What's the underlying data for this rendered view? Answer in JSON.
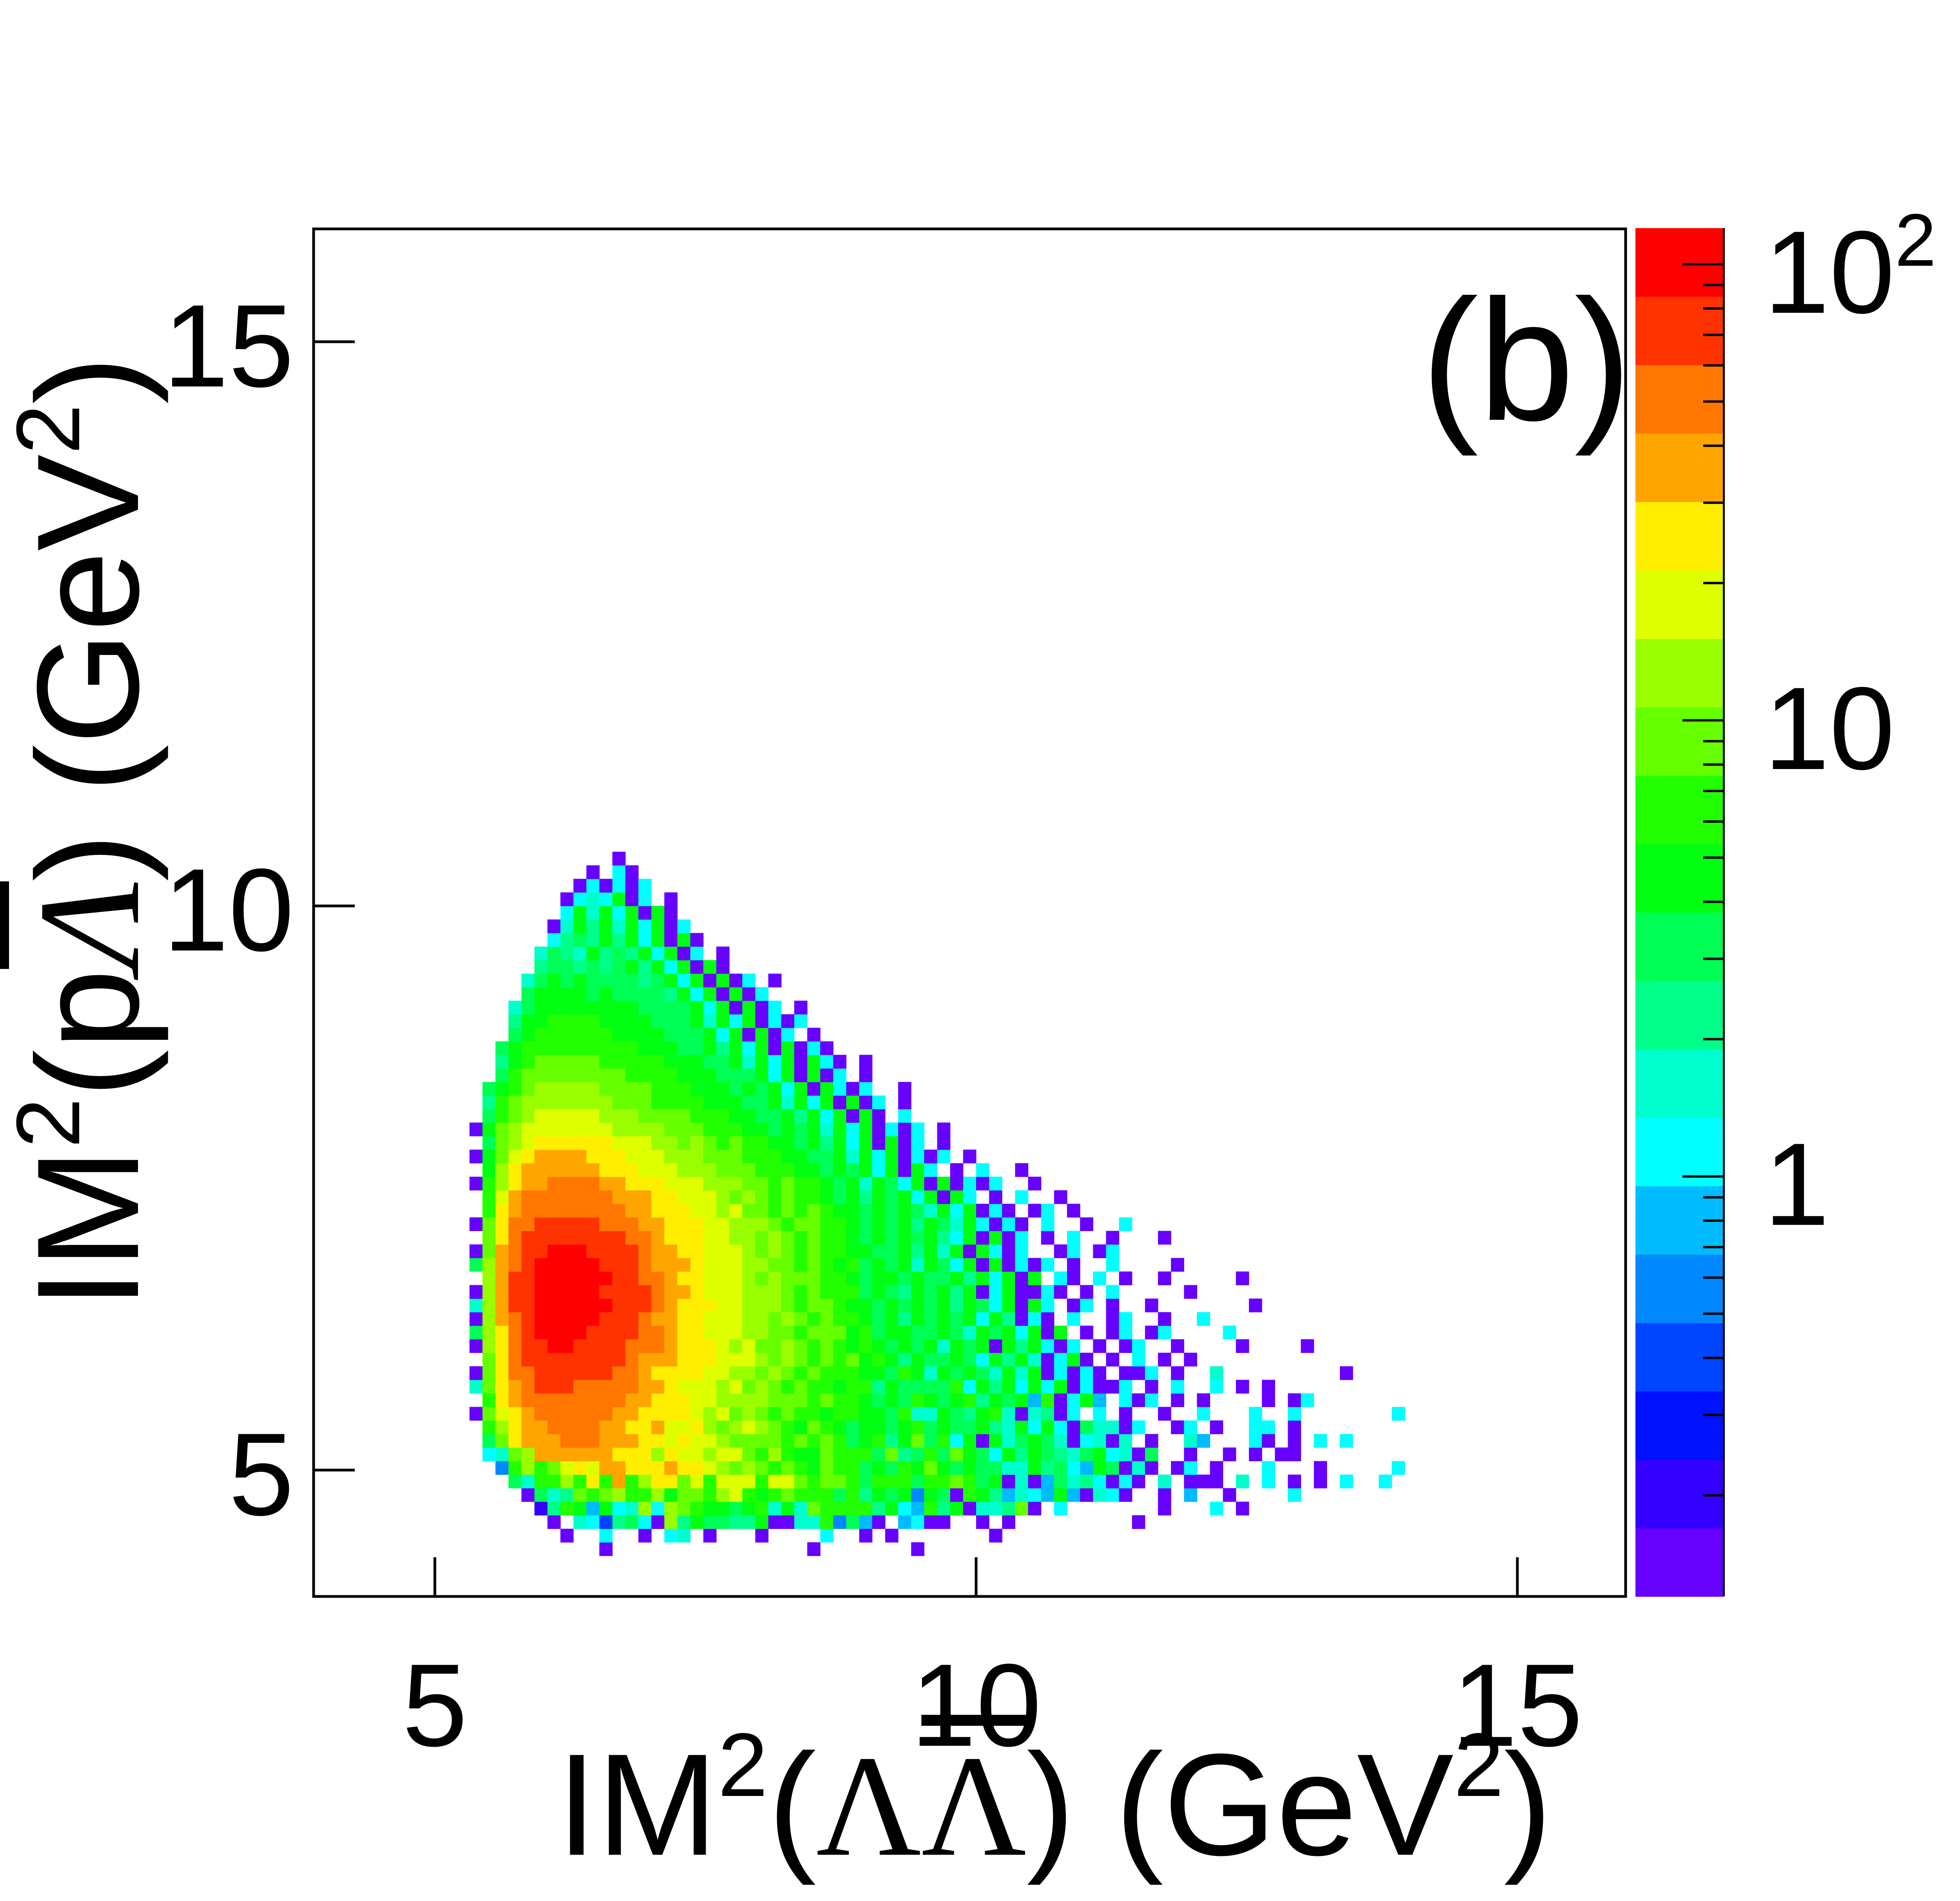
{
  "chart_data": {
    "type": "heatmap",
    "panel_label": "(b)",
    "title": "",
    "xlabel": {
      "prefix": "IM",
      "sup": "2",
      "open": "(",
      "particle1": "Λ",
      "particle2": "Λ",
      "particle2_bar": true,
      "close": ")",
      "unit_open": " (GeV",
      "unit_sup": "2",
      "unit_close": ")"
    },
    "ylabel": {
      "prefix": "IM",
      "sup": "2",
      "open": "(",
      "particle1": "p",
      "particle2": "Λ",
      "particle2_bar": true,
      "close": ")",
      "unit_open": " (GeV",
      "unit_sup": "2",
      "unit_close": ")"
    },
    "xlim": [
      3.88,
      16.0
    ],
    "ylim": [
      3.88,
      16.0
    ],
    "x_ticks": [
      5,
      10,
      15
    ],
    "y_ticks": [
      5,
      10,
      15
    ],
    "x_tick_labels": [
      "5",
      "10",
      "15"
    ],
    "y_tick_labels": [
      "5",
      "10",
      "15"
    ],
    "z_scale": "log",
    "zlim": [
      0.12,
      120
    ],
    "z_ticks": [
      1,
      10,
      100
    ],
    "z_tick_labels": [
      {
        "base": "1",
        "exp": ""
      },
      {
        "base": "10",
        "exp": ""
      },
      {
        "base": "10",
        "exp": "2"
      }
    ],
    "palette": [
      "#6600ff",
      "#3300ff",
      "#0011ff",
      "#0044ff",
      "#0088ff",
      "#00bbff",
      "#00ffff",
      "#00ffcc",
      "#00ff88",
      "#00ff55",
      "#00ff11",
      "#22ff00",
      "#66ff00",
      "#99ff00",
      "#ddff00",
      "#ffee00",
      "#ffa500",
      "#ff7700",
      "#ff3300",
      "#ff0000"
    ],
    "bin_width": 0.12,
    "bin_encoding": "each character is a palette band index (0-9 then a-j = 10-19) for one bin; '.' means empty; row i covers y from y0+i*bin_width, column j covers x from x0+(col_offset+j)*bin_width",
    "x0": 3.88,
    "y0": 3.88,
    "col_offset": 7,
    "row_offset": 3,
    "rows": [
      "...............0...............0.......0....................................",
      "............0..6..0.67.0...0....6..0.0.......0..............................",
      "...........0.7638960d8a9988a0077b4950.5600..0.0.........0....................",
      "..........18ba5a67d6dcbaa9ab7a7cbbbb8a65b8a0778c0.6.......0...6.0............",
      ".........0978cbcdbbdaccbdebabcbbb9b8a9a4a90ba85765a50760..0.5..0....6........",
      "........97bbdbfbgbdffcebeeebeecbccb9bbb9bbcb9a07059786060.7.000.7.6.0.0.6..6.",
      ".......4bdbcefeggfffgffedcdcbcbacbb9a9baca9a9977a8965a9070.06.0...6...0.....6",
      "......67cdggggggfffdfeedeecbdbaacbbb9c89b9ca96a8a9879a6709..0..0.0.00.......",
      "......9cfggghhhgggffefeedccccbcbcb9ab8ac9b6a0a79a9706707.0..75...60.0.6.6....",
      "......bdfgghhhhggffgeefdcdedcbacba9aa9ab9a99a87a6a6097706..06.0..66.0.......",
      ".....0cefghhhhhhggffffedecdcbcbbabbaa9b77a98ab707806.6.0..0..6...6..6.......6",
      "......bfghhhhhhhhggfffeeddddcccbcbba9a9ba9ab8a9a5b06a5.606.0.0....0.06.......",
      ".....7cfghiiihhhhhggfeeedecdcbcbbabb8a9999b6a8a6a6a06006.0.6..6.0.0..........",
      ".....0cfhhiiiiiihhgffffeeddcdcbcbbbaa9ba7a9a97a7a06060.006.0..7.........0....",
      "......cfhiiiiiiiihgggfffeeedcdcbcbcaba8a99a96a8a706a0.0.6.0.0................",
      ".....0dfhiijjiiiihhhgfffedeccdcbcbaba9a9a7a9a0a8a606.0.06..0....0....0.......",
      ".....9dfhijjjjiiiihhgffeeeddccbcccab9aa99a97a9a6a0a.0.06.06....6.............",
      ".....0dghijjjjjiiihggffeeeddcdcbcbba9a8a9a9a6a8060.6..06..0..6...............",
      ".....7dgiijjjjjjiiihgfffeedddcbccbaa9a9a9a8a96a0a6.06.0..0.......0...........",
      ".....0dgiijjjjjiiiihggfeeedddcbcbbb9a98a9a8a06a0060.0.6.....0................",
      "......dgiijjjjjjiihhgffeeedcdcccbba9aa9a99a8a6a0a.60.6.0..0.....0............",
      ".....9dghijjjjjiiihgggfeeeddccbcbab9a9a7a96a0a0606.0..6....0.................",
      ".....0cghiijjjiiiihggffeeedcdcbcbbaa99a8a7a0a606..06.06......................",
      "......cfhiiiiiiiihhgfffeeddcdcbcbba9a9a9a86a0a06.0.6..0...0..................",
      ".....0cfhhiiiiihhhggfffeedddcbccbba9a9a8a97a6060.6..0..6.....................",
      "......bfghhhhhhhhggfffeedeccbcbcbaa9a9a97a6a060.06.0.........................",
      "......beghhhhhhhgggffeeedcdcbcbba9a8a9a6a0a6.0.6..0..........................",
      ".....0bdfgghhhhggfffeeedddccbcbba9a7a96a0a0606..0.............................",
      "......adfggggggfffeeedddcccbbbaa9a9a6a0a6.0.6..0..............................",
      ".....0acefggggfffeeedddcccbbbaa99a7a6a0606.0..................................",
      "......9cdeffffffeeeddcdcbcbbaa9a8a6a0a06.0....................................",
      ".....0acdeeeeeeeddddcccbbbaa9a9a7a6a0606.0....................................",
      "......9bcdeeeeedddccccbbbaa99a8a6a0a0.6.......................................",
      "......8bcdddddddcccbbbbaaa99a7a6a0a06.0.......................................",
      "......9abcdddddccccbbbaaa9a9a6a0a606..0.......................................",
      ".......9bccccccccbbbbaaa999a6a0a06.0..........................................",
      ".......8abcccccbbbbbaaa99a7a6a0a60.0..........................................",
      ".......9abbbbbbbbbaaa99a8a6a0a060.............................................",
      "........9abbbbbbaaaa999a6a0a06.0..............................................",
      "........8aabbbbaaaa999a7a6a0606...............................................",
      "........79aaaaaaaa9999a6a0a06.0...............................................",
      ".........9aaaa9a99998a6a0a06...................................................",
      ".........79a9a999989a6a0a06.0..................................................",
      "..........8998989a8a6a0a0.....................................................",
      "..........7987a898a6a06.0......................................................",
      "...........6898a8a6a0a0.......................................................",
      "...........07a8a7a6a06.........................................................",
      "............6a7a6a0a0..........................................................",
      "............0676a06.0..........................................................",
      ".............060606............................................................",
      "..............0.60.............................................................",
      "................0..............................................................."
    ]
  }
}
